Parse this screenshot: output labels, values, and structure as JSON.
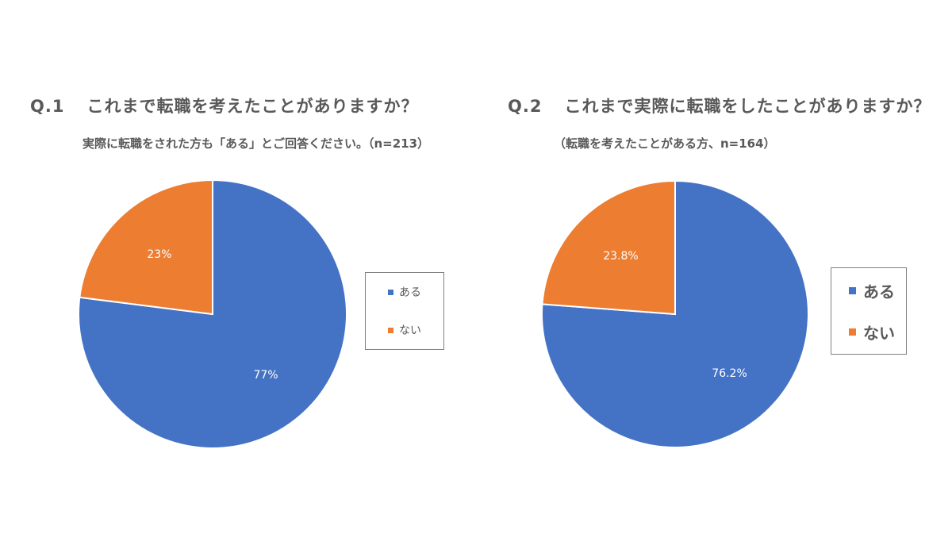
{
  "colors": {
    "aru": "#4472C4",
    "nai": "#ED7D31"
  },
  "chart_data": [
    {
      "type": "pie",
      "title_num": "Q.1",
      "title": "これまで転職を考えたことがありますか？",
      "subtitle": "実際に転職をされた方も「ある」とご回答ください。（n=213）",
      "categories": [
        "ある",
        "ない"
      ],
      "values": [
        77,
        23
      ],
      "data_labels": [
        "77%",
        "23%"
      ],
      "legend": {
        "placement": "right",
        "items": [
          "ある",
          "ない"
        ]
      }
    },
    {
      "type": "pie",
      "title_num": "Q.2",
      "title": "これまで実際に転職をしたことがありますか？",
      "subtitle": "（転職を考えたことがある方、n=164）",
      "categories": [
        "ある",
        "ない"
      ],
      "values": [
        76.2,
        23.8
      ],
      "data_labels": [
        "76.2%",
        "23.8%"
      ],
      "legend": {
        "placement": "right",
        "items": [
          "ある",
          "ない"
        ]
      }
    }
  ]
}
